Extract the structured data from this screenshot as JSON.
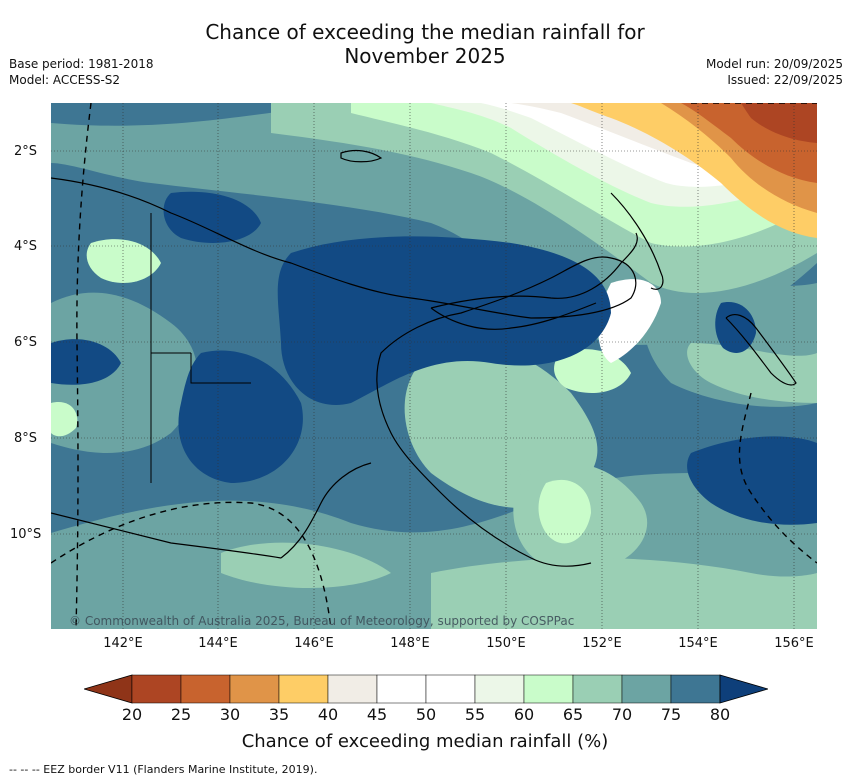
{
  "title_line1": "Chance of exceeding the median rainfall for",
  "title_line2": "November 2025",
  "meta_left": [
    "Base period: 1981-2018",
    "Model: ACCESS-S2"
  ],
  "meta_right": [
    "Model run: 20/09/2025",
    "Issued: 22/09/2025"
  ],
  "map": {
    "region": "Papua New Guinea",
    "lat_range": [
      -12,
      -1
    ],
    "lon_range": [
      140.6,
      156.6
    ],
    "lat_ticks": [
      "2°S",
      "4°S",
      "6°S",
      "8°S",
      "10°S"
    ],
    "lon_ticks": [
      "142°E",
      "144°E",
      "146°E",
      "148°E",
      "150°E",
      "152°E",
      "154°E",
      "156°E"
    ],
    "copyright": "© Commonwealth of Australia 2025, Bureau of Meteorology, supported by COSPPac"
  },
  "colorbar": {
    "levels": [
      "20",
      "25",
      "30",
      "35",
      "40",
      "45",
      "50",
      "55",
      "60",
      "65",
      "70",
      "75",
      "80"
    ],
    "colors": [
      "#ad4523",
      "#c8632e",
      "#e09448",
      "#fecd66",
      "#f1ede6",
      "#ffffff",
      "#ffffff",
      "#ecf7e8",
      "#c9fcca",
      "#9acfb4",
      "#6ca4a3",
      "#3e7693",
      "#124a84"
    ],
    "low_extend_color": "#8f3418",
    "high_extend_color": "#0e3f7a",
    "label": "Chance of exceeding median rainfall (%)"
  },
  "legend_note": "--  --  -- EEZ border V11 (Flanders Marine Institute, 2019)."
}
